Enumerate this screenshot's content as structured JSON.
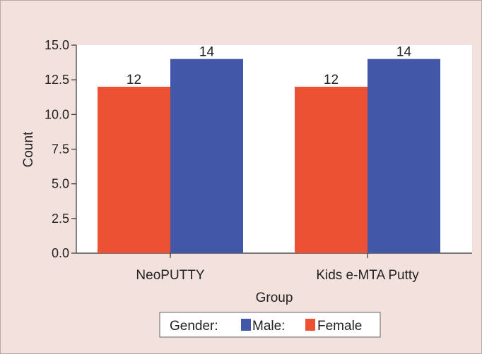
{
  "chart_data": {
    "type": "bar",
    "title": "",
    "xlabel": "Group",
    "ylabel": "Count",
    "categories": [
      "NeoPUTTY",
      "Kids e-MTA Putty"
    ],
    "ylim": [
      0,
      15
    ],
    "yticks": [
      "0.0",
      "2.5",
      "5.0",
      "7.5",
      "10.0",
      "12.5",
      "15.0"
    ],
    "ytick_values": [
      0,
      2.5,
      5,
      7.5,
      10,
      12.5,
      15
    ],
    "series": [
      {
        "name": "Female",
        "color": "#ec5134",
        "values": [
          12,
          12
        ]
      },
      {
        "name": "Male",
        "color": "#4257a8",
        "values": [
          14,
          14
        ]
      }
    ],
    "legend": {
      "title": "Gender:",
      "entries": [
        "Male:",
        "Female"
      ],
      "placement": "bottom-center"
    },
    "data_labels": [
      "12",
      "14",
      "12",
      "14"
    ]
  }
}
